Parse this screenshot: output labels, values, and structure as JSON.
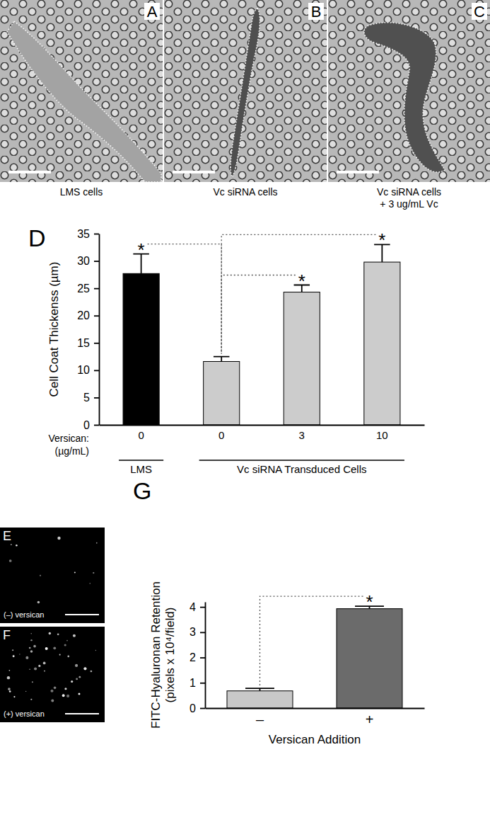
{
  "panels": [
    {
      "letter": "A",
      "caption": [
        "LMS cells"
      ]
    },
    {
      "letter": "B",
      "caption": [
        "Vc siRNA cells"
      ]
    },
    {
      "letter": "C",
      "caption": [
        "Vc siRNA cells",
        "+ 3 ug/mL Vc"
      ]
    },
    {
      "letter": "E",
      "caption": [
        "(–) versican"
      ]
    },
    {
      "letter": "F",
      "caption": [
        "(+) versican"
      ]
    }
  ],
  "chart_data": [
    {
      "type": "bar",
      "title": "D",
      "categories": [
        "0",
        "0",
        "3",
        "10"
      ],
      "category_groups": [
        "LMS",
        "Vc siRNA Transduced Cells",
        "Vc siRNA Transduced Cells",
        "Vc siRNA Transduced Cells"
      ],
      "values": [
        27.7,
        11.6,
        24.3,
        29.8
      ],
      "errors": [
        3.6,
        0.9,
        1.3,
        3.2
      ],
      "annotations": [
        "*",
        null,
        "*",
        "*"
      ],
      "colors": [
        "#000000",
        "#cccccc",
        "#cccccc",
        "#cccccc"
      ],
      "xlabel": "Versican:\n(µg/mL)",
      "ylabel": "Cell Coat Thickenss (µm)",
      "ylim": [
        0,
        35
      ],
      "yticks": [
        0,
        5,
        10,
        15,
        20,
        25,
        30,
        35
      ]
    },
    {
      "type": "bar",
      "title": "G",
      "categories": [
        "–",
        "+"
      ],
      "values": [
        0.68,
        3.93
      ],
      "errors": [
        0.1,
        0.1
      ],
      "annotations": [
        null,
        "*"
      ],
      "colors": [
        "#c8c8c8",
        "#6b6b6b"
      ],
      "xlabel": "Versican Addition",
      "ylabel": "FITC-Hyaluronan Retention\n(pixels x 10⁴/field)",
      "ylim": [
        0,
        4.2
      ],
      "yticks": [
        0,
        1,
        2,
        3,
        4
      ]
    }
  ]
}
